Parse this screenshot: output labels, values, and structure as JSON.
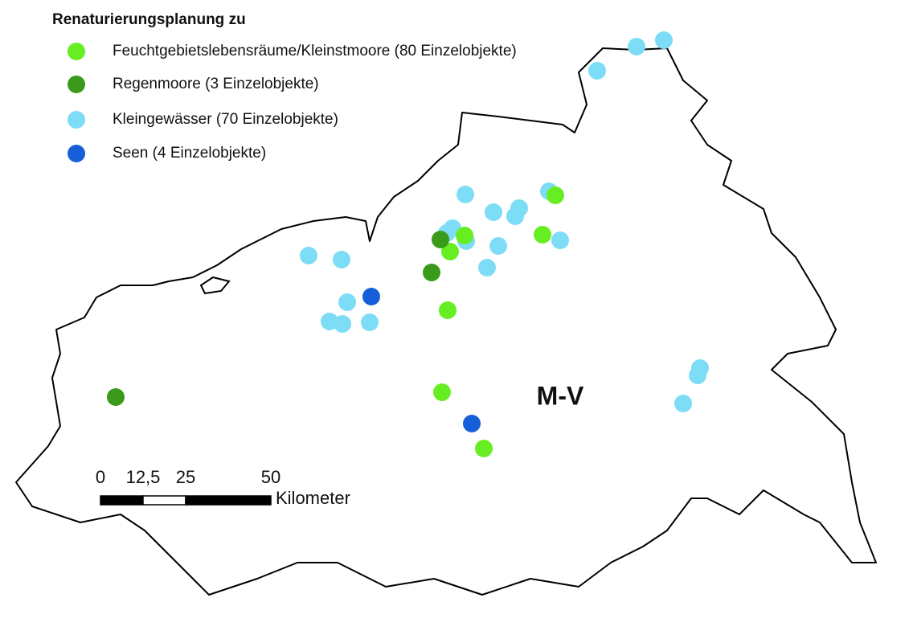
{
  "legend": {
    "title": "Renaturierungsplanung zu",
    "items": [
      {
        "name": "Feuchtgebietslebensräume/Kleinstmoore (80 Einzelobjekte)",
        "color": "#66ee22"
      },
      {
        "name": "Regenmoore (3 Einzelobjekte)",
        "color": "#3a9a1a"
      },
      {
        "name": "Kleingewässer  (70 Einzelobjekte)",
        "color": "#7ddcf6"
      },
      {
        "name": "Seen (4 Einzelobjekte)",
        "color": "#1560d8"
      }
    ]
  },
  "map_label": "M-V",
  "scale_bar": {
    "ticks": [
      0,
      {
        "value": 12.5,
        "label": "12,5"
      },
      25,
      50
    ],
    "unit": "Kilometer"
  }
}
